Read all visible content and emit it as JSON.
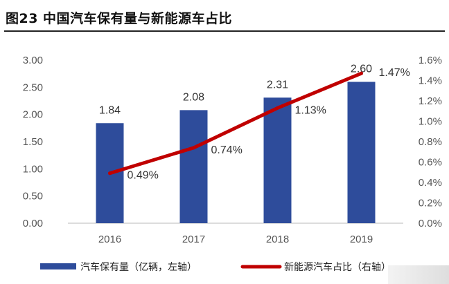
{
  "title": "图23 中国汽车保有量与新能源车占比",
  "chart_data": {
    "type": "bar",
    "categories": [
      "2016",
      "2017",
      "2018",
      "2019"
    ],
    "series": [
      {
        "name": "汽车保有量（亿辆，左轴）",
        "type": "bar",
        "axis": "left",
        "values": [
          1.84,
          2.08,
          2.31,
          2.6
        ],
        "labels": [
          "1.84",
          "2.08",
          "2.31",
          "2.60"
        ],
        "color": "#2E4C9B"
      },
      {
        "name": "新能源汽车占比（右轴）",
        "type": "line",
        "axis": "right",
        "values": [
          0.49,
          0.74,
          1.13,
          1.47
        ],
        "labels": [
          "0.49%",
          "0.74%",
          "1.13%",
          "1.47%"
        ],
        "color": "#C00000"
      }
    ],
    "y_left": {
      "range": [
        0,
        3.0
      ],
      "ticks": [
        "0.00",
        "0.50",
        "1.00",
        "1.50",
        "2.00",
        "2.50",
        "3.00"
      ]
    },
    "y_right": {
      "range": [
        0,
        1.6
      ],
      "ticks": [
        "0.0%",
        "0.2%",
        "0.4%",
        "0.6%",
        "0.8%",
        "1.0%",
        "1.2%",
        "1.4%",
        "1.6%"
      ]
    },
    "grid": false,
    "legend_position": "bottom"
  }
}
